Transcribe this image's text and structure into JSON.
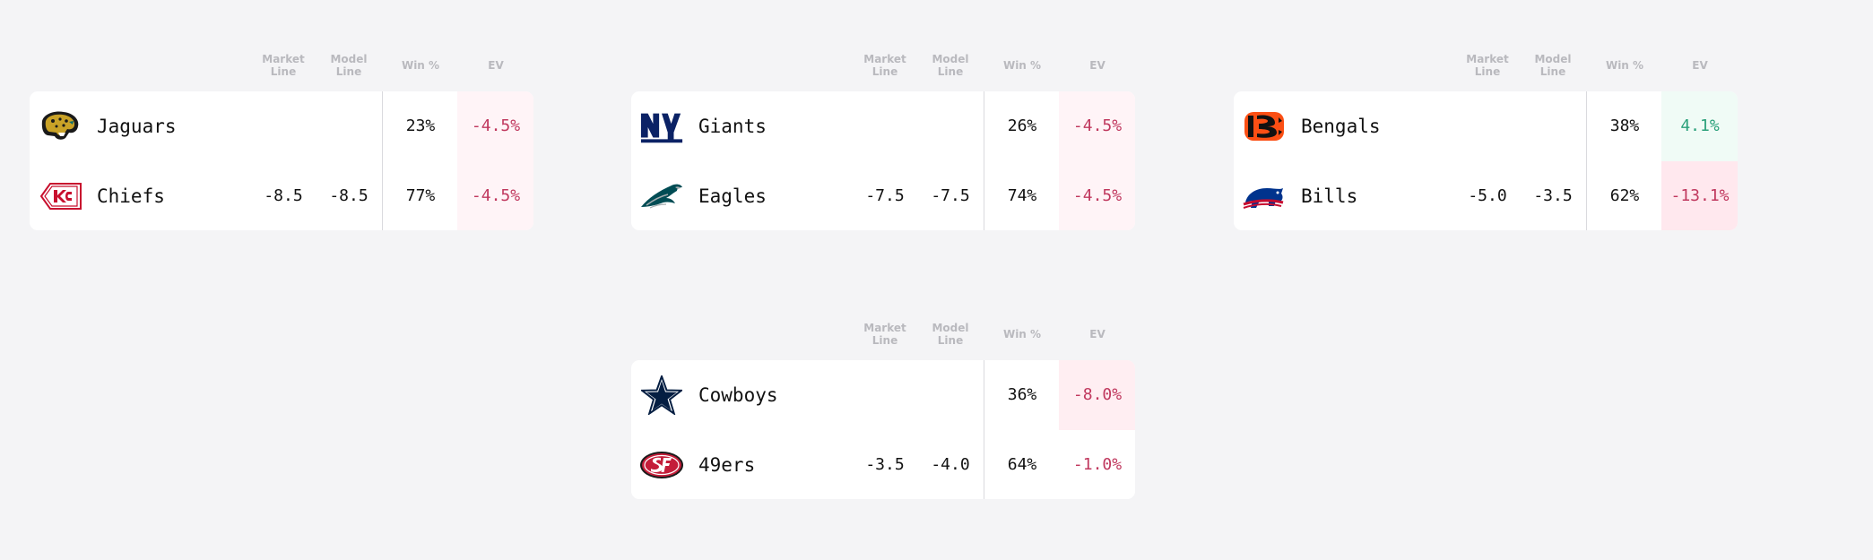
{
  "headers": {
    "market": [
      "Market",
      "Line"
    ],
    "model": [
      "Model",
      "Line"
    ],
    "win": "Win %",
    "ev": "EV"
  },
  "colors": {
    "ev_negative_text": "#c0385e",
    "ev_positive_text": "#2aa07a",
    "ev_negative_bg": "#fff3f6",
    "ev_strong_negative_bg": "#ffe8ee",
    "ev_positive_bg": "#f0fbf6"
  },
  "games": [
    {
      "teams": [
        {
          "name": "Jaguars",
          "logo": "jaguars-logo-icon",
          "market_line": "",
          "model_line": "",
          "win_pct": "23%",
          "ev": "-4.5%"
        },
        {
          "name": "Chiefs",
          "logo": "chiefs-logo-icon",
          "market_line": "-8.5",
          "model_line": "-8.5",
          "win_pct": "77%",
          "ev": "-4.5%"
        }
      ]
    },
    {
      "teams": [
        {
          "name": "Giants",
          "logo": "giants-logo-icon",
          "market_line": "",
          "model_line": "",
          "win_pct": "26%",
          "ev": "-4.5%"
        },
        {
          "name": "Eagles",
          "logo": "eagles-logo-icon",
          "market_line": "-7.5",
          "model_line": "-7.5",
          "win_pct": "74%",
          "ev": "-4.5%"
        }
      ]
    },
    {
      "teams": [
        {
          "name": "Bengals",
          "logo": "bengals-logo-icon",
          "market_line": "",
          "model_line": "",
          "win_pct": "38%",
          "ev": "4.1%"
        },
        {
          "name": "Bills",
          "logo": "bills-logo-icon",
          "market_line": "-5.0",
          "model_line": "-3.5",
          "win_pct": "62%",
          "ev": "-13.1%"
        }
      ]
    },
    {
      "teams": [
        {
          "name": "Cowboys",
          "logo": "cowboys-logo-icon",
          "market_line": "",
          "model_line": "",
          "win_pct": "36%",
          "ev": "-8.0%"
        },
        {
          "name": "49ers",
          "logo": "49ers-logo-icon",
          "market_line": "-3.5",
          "model_line": "-4.0",
          "win_pct": "64%",
          "ev": "-1.0%"
        }
      ]
    }
  ]
}
